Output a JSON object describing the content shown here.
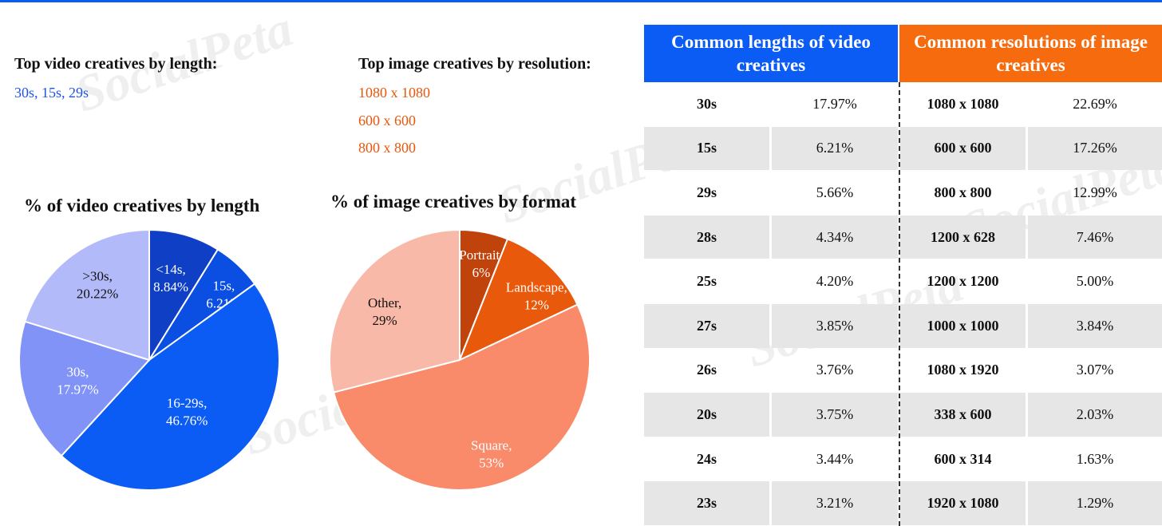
{
  "page": {
    "accent_blue": "#0a5cf5",
    "accent_orange": "#f56b0d"
  },
  "video_top": {
    "heading": "Top video creatives by length:",
    "items": "30s, 15s, 29s"
  },
  "image_top": {
    "heading": "Top image creatives by resolution:",
    "items": [
      "1080 x 1080",
      "600 x 600",
      "800 x 800"
    ]
  },
  "watermark": "SocialPeta",
  "chart_data": [
    {
      "type": "pie",
      "title": "% of video creatives by length",
      "labels": [
        "<14s,",
        "15s,",
        "16-29s,",
        "30s,",
        ">30s,"
      ],
      "values": [
        8.84,
        6.21,
        46.76,
        17.97,
        20.22
      ],
      "value_labels": [
        "8.84%",
        "6.21%",
        "46.76%",
        "17.97%",
        "20.22%"
      ],
      "colors": [
        "#0f3fc4",
        "#0b4fe2",
        "#0a5cf5",
        "#8293f8",
        "#b3baf9"
      ],
      "label_colors": [
        "#ffffff",
        "#ffffff",
        "#ffffff",
        "#ffffff",
        "#111111"
      ]
    },
    {
      "type": "pie",
      "title": "% of image creatives by format",
      "labels": [
        "Portrait,",
        "Landscape,",
        "Square,",
        "Other,"
      ],
      "values": [
        6,
        12,
        53,
        29
      ],
      "value_labels": [
        "6%",
        "12%",
        "53%",
        "29%"
      ],
      "colors": [
        "#c0430b",
        "#e8590c",
        "#f98a6a",
        "#f9b9a8"
      ],
      "label_colors": [
        "#ffffff",
        "#ffffff",
        "#ffffff",
        "#111111"
      ]
    },
    {
      "type": "table",
      "headers": {
        "video": "Common lengths of video creatives",
        "image": "Common resolutions of image creatives"
      },
      "header_colors": {
        "video": "#0a5cf5",
        "image": "#f56b0d"
      },
      "rows": [
        [
          "30s",
          "17.97%",
          "1080 x 1080",
          "22.69%"
        ],
        [
          "15s",
          "6.21%",
          "600 x 600",
          "17.26%"
        ],
        [
          "29s",
          "5.66%",
          "800 x 800",
          "12.99%"
        ],
        [
          "28s",
          "4.34%",
          "1200 x 628",
          "7.46%"
        ],
        [
          "25s",
          "4.20%",
          "1200 x 1200",
          "5.00%"
        ],
        [
          "27s",
          "3.85%",
          "1000 x 1000",
          "3.84%"
        ],
        [
          "26s",
          "3.76%",
          "1080 x 1920",
          "3.07%"
        ],
        [
          "20s",
          "3.75%",
          "338 x 600",
          "2.03%"
        ],
        [
          "24s",
          "3.44%",
          "600 x 314",
          "1.63%"
        ],
        [
          "23s",
          "3.21%",
          "1920 x 1080",
          "1.29%"
        ]
      ]
    }
  ]
}
